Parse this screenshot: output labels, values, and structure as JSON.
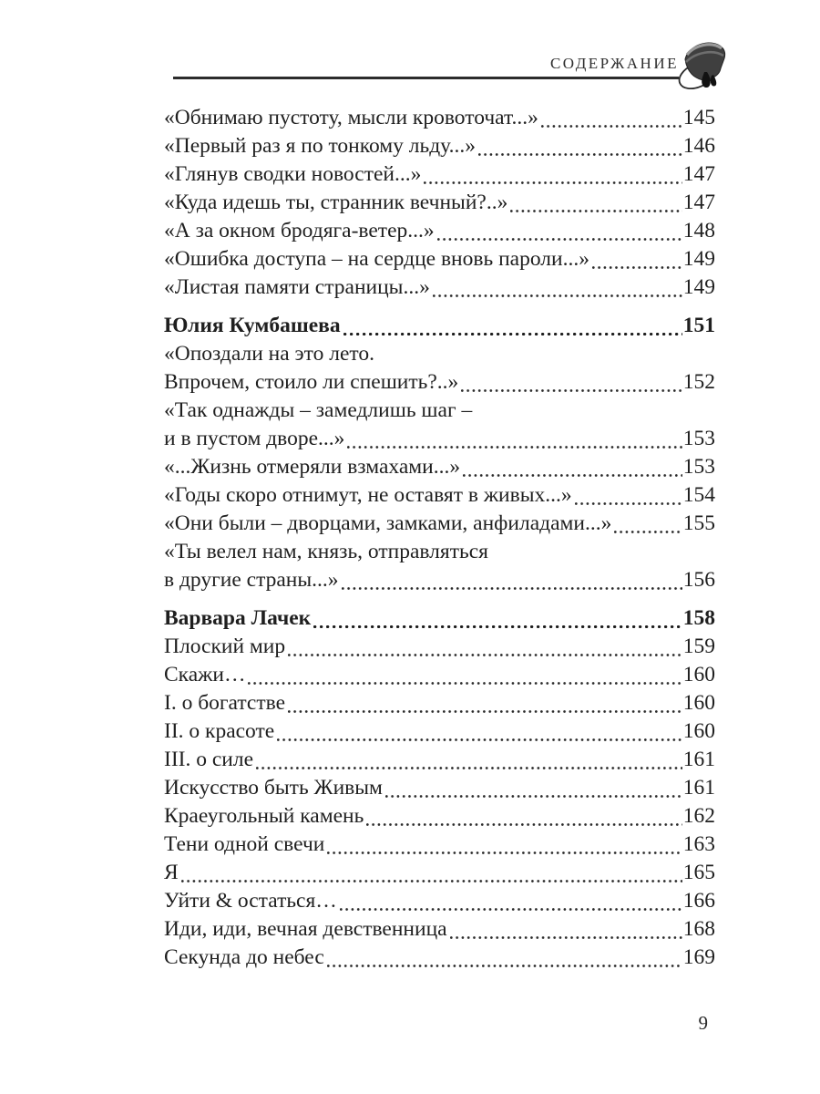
{
  "header": {
    "title": "СОДЕРЖАНИЕ",
    "icon": "bell-flame-icon"
  },
  "toc": {
    "entries": [
      {
        "lines": [
          "«Обнимаю пустоту, мысли кровоточат...»"
        ],
        "page": "145"
      },
      {
        "lines": [
          "«Первый раз я по тонкому льду...»"
        ],
        "page": "146"
      },
      {
        "lines": [
          "«Глянув сводки новостей...»"
        ],
        "page": "147"
      },
      {
        "lines": [
          "«Куда идешь ты, странник вечный?..»"
        ],
        "page": "147"
      },
      {
        "lines": [
          "«А за окном бродяга-ветер...»"
        ],
        "page": "148"
      },
      {
        "lines": [
          "«Ошибка доступа – на сердце вновь пароли...»"
        ],
        "page": "149"
      },
      {
        "lines": [
          "«Листая памяти страницы...»"
        ],
        "page": "149"
      },
      {
        "lines": [
          "Юлия Кумбашева"
        ],
        "page": "151",
        "bold": true,
        "section_start": true
      },
      {
        "lines": [
          "«Опоздали на это лето.",
          "Впрочем, стоило ли спешить?..»"
        ],
        "page": "152"
      },
      {
        "lines": [
          "«Так однажды – замедлишь шаг –",
          "и в пустом дворе...»"
        ],
        "page": "153"
      },
      {
        "lines": [
          "«...Жизнь отмеряли взмахами...»"
        ],
        "page": "153"
      },
      {
        "lines": [
          "«Годы скоро отнимут, не оставят в живых...»"
        ],
        "page": "154"
      },
      {
        "lines": [
          "«Они были – дворцами, замками, анфиладами...»"
        ],
        "page": "155"
      },
      {
        "lines": [
          "«Ты велел нам, князь, отправляться",
          "в другие страны...»"
        ],
        "page": "156"
      },
      {
        "lines": [
          "Варвара Лачек"
        ],
        "page": "158",
        "bold": true,
        "section_start": true
      },
      {
        "lines": [
          "Плоский мир"
        ],
        "page": "159"
      },
      {
        "lines": [
          "Скажи…"
        ],
        "page": "160"
      },
      {
        "lines": [
          "I. о богатстве"
        ],
        "page": "160"
      },
      {
        "lines": [
          "II. о красоте"
        ],
        "page": "160"
      },
      {
        "lines": [
          "III. о силе"
        ],
        "page": "161"
      },
      {
        "lines": [
          "Искусство быть Живым"
        ],
        "page": "161"
      },
      {
        "lines": [
          "Краеугольный камень"
        ],
        "page": "162"
      },
      {
        "lines": [
          "Тени одной свечи"
        ],
        "page": "163"
      },
      {
        "lines": [
          "Я"
        ],
        "page": "165"
      },
      {
        "lines": [
          "Уйти & остаться…"
        ],
        "page": "166"
      },
      {
        "lines": [
          "Иди, иди, вечная девственница"
        ],
        "page": "168"
      },
      {
        "lines": [
          "Секунда до небес"
        ],
        "page": "169"
      }
    ]
  },
  "footer": {
    "page_number": "9"
  },
  "colors": {
    "background": "#ffffff",
    "text": "#1f1f1f",
    "rule": "#2c2c2c",
    "leader_dot": "#2a2a2a",
    "icon_dark": "#3f3f3f",
    "icon_mid": "#6e6e6e",
    "icon_light": "#9a9a9a"
  }
}
